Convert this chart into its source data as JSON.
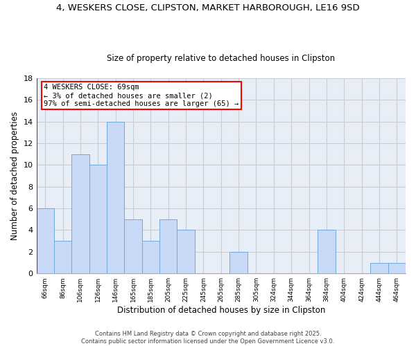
{
  "title1": "4, WESKERS CLOSE, CLIPSTON, MARKET HARBOROUGH, LE16 9SD",
  "title2": "Size of property relative to detached houses in Clipston",
  "xlabel": "Distribution of detached houses by size in Clipston",
  "ylabel": "Number of detached properties",
  "categories": [
    "66sqm",
    "86sqm",
    "106sqm",
    "126sqm",
    "146sqm",
    "165sqm",
    "185sqm",
    "205sqm",
    "225sqm",
    "245sqm",
    "265sqm",
    "285sqm",
    "305sqm",
    "324sqm",
    "344sqm",
    "364sqm",
    "384sqm",
    "404sqm",
    "424sqm",
    "444sqm",
    "464sqm"
  ],
  "values": [
    6,
    3,
    11,
    10,
    14,
    5,
    3,
    5,
    4,
    0,
    0,
    2,
    0,
    0,
    0,
    0,
    4,
    0,
    0,
    1,
    1
  ],
  "bar_color": "#c9daf8",
  "bar_edge_color": "#6fa8dc",
  "bar_edge_width": 0.7,
  "annotation_text": "4 WESKERS CLOSE: 69sqm\n← 3% of detached houses are smaller (2)\n97% of semi-detached houses are larger (65) →",
  "annotation_box_color": "white",
  "annotation_box_edge_color": "red",
  "ylim": [
    0,
    18
  ],
  "yticks": [
    0,
    2,
    4,
    6,
    8,
    10,
    12,
    14,
    16,
    18
  ],
  "footer": "Contains HM Land Registry data © Crown copyright and database right 2025.\nContains public sector information licensed under the Open Government Licence v3.0.",
  "grid_color": "#cccccc",
  "bg_color": "#e8eef8",
  "title1_fontsize": 9.5,
  "title2_fontsize": 8.5,
  "footer_fontsize": 6.0
}
